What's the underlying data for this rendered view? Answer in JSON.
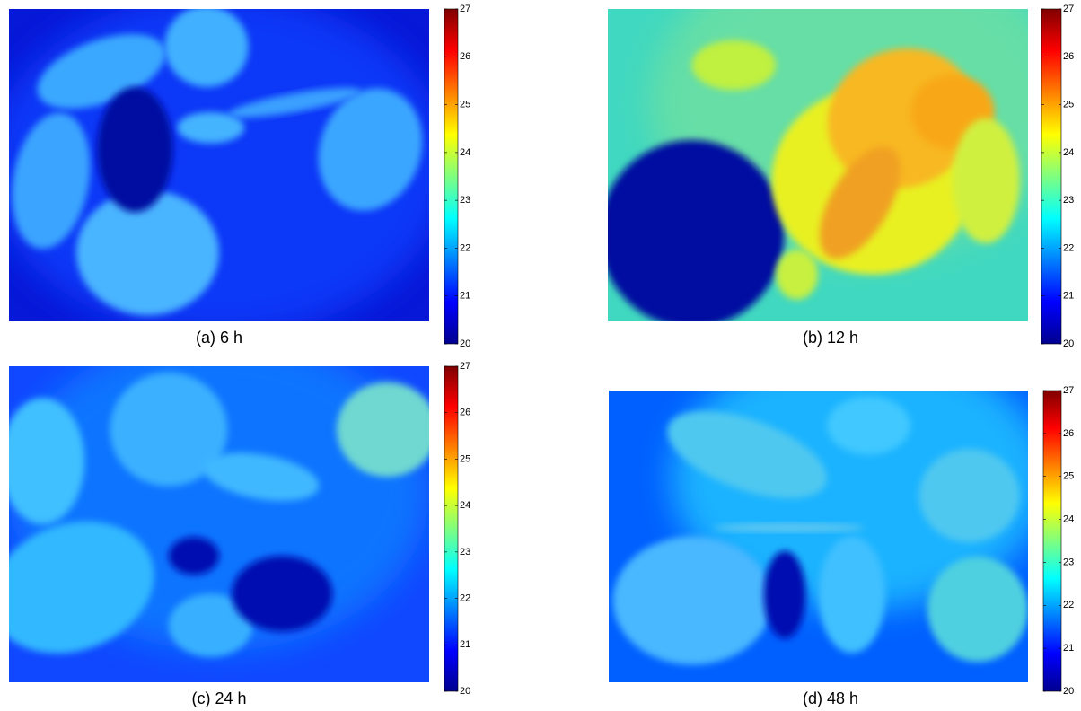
{
  "panels": [
    {
      "caption": "(a) 6 h",
      "clim": [
        20,
        27
      ],
      "ticks": [
        20,
        21,
        22,
        23,
        24,
        25,
        26,
        27
      ]
    },
    {
      "caption": "(b) 12 h",
      "clim": [
        20,
        27
      ],
      "ticks": [
        20,
        21,
        22,
        23,
        24,
        25,
        26,
        27
      ]
    },
    {
      "caption": "(c) 24 h",
      "clim": [
        20,
        27
      ],
      "ticks": [
        20,
        21,
        22,
        23,
        24,
        25,
        26,
        27
      ]
    },
    {
      "caption": "(d) 48 h",
      "clim": [
        20,
        27
      ],
      "ticks": [
        20,
        21,
        22,
        23,
        24,
        25,
        26,
        27
      ]
    }
  ]
}
